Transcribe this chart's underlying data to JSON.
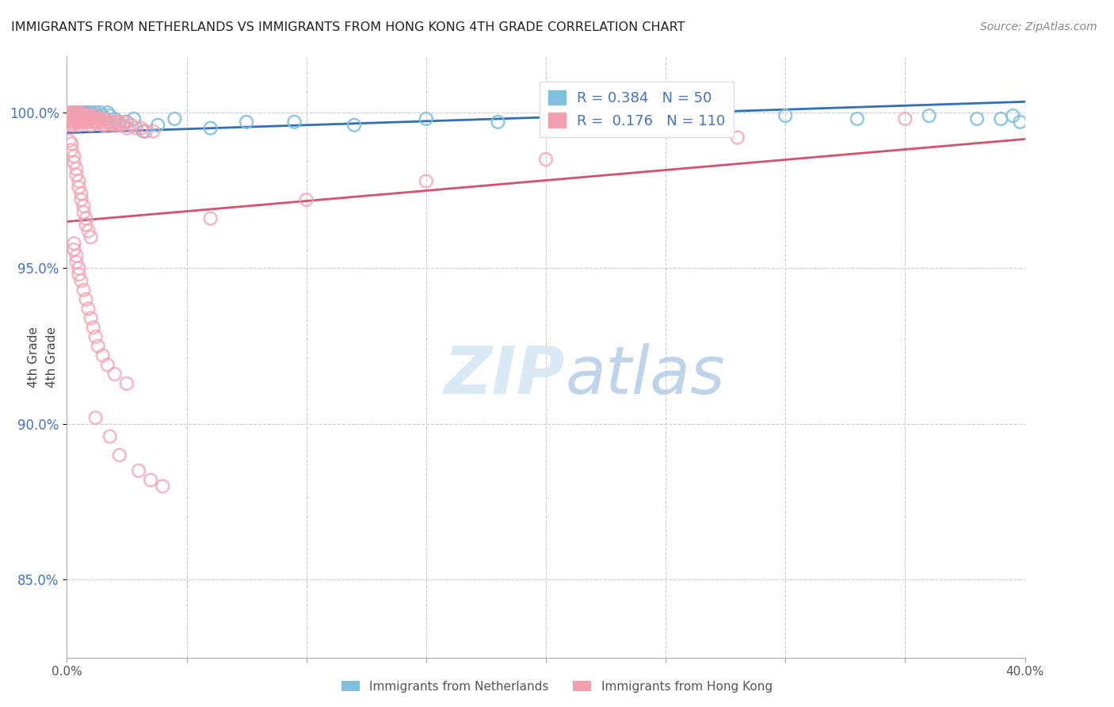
{
  "title": "IMMIGRANTS FROM NETHERLANDS VS IMMIGRANTS FROM HONG KONG 4TH GRADE CORRELATION CHART",
  "source": "Source: ZipAtlas.com",
  "ylabel": "4th Grade",
  "ytick_labels": [
    "100.0%",
    "95.0%",
    "90.0%",
    "85.0%"
  ],
  "ytick_values": [
    1.0,
    0.95,
    0.9,
    0.85
  ],
  "xlim": [
    0.0,
    0.4
  ],
  "ylim": [
    0.825,
    1.018
  ],
  "legend_blue_r": "R = 0.384",
  "legend_blue_n": "N = 50",
  "legend_pink_r": "R =  0.176",
  "legend_pink_n": "N = 110",
  "blue_color": "#7fbfdf",
  "pink_color": "#f4a0b0",
  "blue_line_color": "#3070b8",
  "pink_line_color": "#d85070",
  "blue_trend_x": [
    0.0,
    0.4
  ],
  "blue_trend_y": [
    0.9935,
    1.0035
  ],
  "pink_trend_x": [
    0.0,
    0.4
  ],
  "pink_trend_y": [
    0.965,
    0.9915
  ],
  "netherlands_x": [
    0.001,
    0.002,
    0.002,
    0.003,
    0.003,
    0.004,
    0.004,
    0.005,
    0.005,
    0.006,
    0.006,
    0.007,
    0.007,
    0.007,
    0.008,
    0.008,
    0.009,
    0.01,
    0.01,
    0.011,
    0.012,
    0.013,
    0.014,
    0.015,
    0.016,
    0.017,
    0.018,
    0.02,
    0.022,
    0.025,
    0.028,
    0.032,
    0.038,
    0.045,
    0.06,
    0.075,
    0.095,
    0.12,
    0.15,
    0.18,
    0.21,
    0.24,
    0.27,
    0.3,
    0.33,
    0.36,
    0.38,
    0.39,
    0.395,
    0.398
  ],
  "netherlands_y": [
    0.999,
    1.0,
    0.999,
    1.0,
    0.999,
    1.0,
    0.999,
    1.0,
    0.999,
    1.0,
    0.999,
    1.0,
    0.999,
    1.0,
    1.0,
    0.999,
    1.0,
    0.999,
    1.0,
    0.999,
    1.0,
    0.999,
    1.0,
    0.999,
    0.998,
    1.0,
    0.999,
    0.998,
    0.996,
    0.997,
    0.998,
    0.994,
    0.996,
    0.998,
    0.995,
    0.997,
    0.997,
    0.996,
    0.998,
    0.997,
    0.998,
    0.997,
    0.998,
    0.999,
    0.998,
    0.999,
    0.998,
    0.998,
    0.999,
    0.997
  ],
  "hongkong_x": [
    0.001,
    0.001,
    0.001,
    0.002,
    0.002,
    0.002,
    0.002,
    0.002,
    0.003,
    0.003,
    0.003,
    0.003,
    0.003,
    0.004,
    0.004,
    0.004,
    0.004,
    0.005,
    0.005,
    0.005,
    0.005,
    0.005,
    0.006,
    0.006,
    0.006,
    0.006,
    0.007,
    0.007,
    0.007,
    0.008,
    0.008,
    0.008,
    0.009,
    0.009,
    0.009,
    0.01,
    0.01,
    0.01,
    0.011,
    0.011,
    0.012,
    0.012,
    0.013,
    0.013,
    0.014,
    0.015,
    0.015,
    0.016,
    0.016,
    0.017,
    0.018,
    0.019,
    0.02,
    0.021,
    0.022,
    0.023,
    0.024,
    0.025,
    0.027,
    0.029,
    0.031,
    0.033,
    0.036,
    0.001,
    0.002,
    0.002,
    0.003,
    0.003,
    0.004,
    0.004,
    0.005,
    0.005,
    0.006,
    0.006,
    0.007,
    0.007,
    0.008,
    0.008,
    0.009,
    0.01,
    0.003,
    0.003,
    0.004,
    0.004,
    0.005,
    0.005,
    0.006,
    0.007,
    0.008,
    0.009,
    0.01,
    0.011,
    0.012,
    0.013,
    0.015,
    0.017,
    0.02,
    0.025,
    0.012,
    0.018,
    0.022,
    0.03,
    0.035,
    0.04,
    0.35,
    0.28,
    0.2,
    0.15,
    0.1,
    0.06
  ],
  "hongkong_y": [
    1.0,
    0.999,
    0.998,
    1.0,
    0.999,
    0.998,
    0.997,
    0.996,
    1.0,
    0.999,
    0.998,
    0.997,
    0.996,
    1.0,
    0.999,
    0.998,
    0.997,
    1.0,
    0.999,
    0.998,
    0.997,
    0.996,
    1.0,
    0.999,
    0.998,
    0.997,
    0.999,
    0.998,
    0.997,
    0.999,
    0.998,
    0.997,
    0.999,
    0.998,
    0.997,
    0.999,
    0.998,
    0.996,
    0.998,
    0.997,
    0.999,
    0.997,
    0.998,
    0.997,
    0.998,
    0.997,
    0.996,
    0.998,
    0.996,
    0.997,
    0.997,
    0.996,
    0.997,
    0.996,
    0.997,
    0.996,
    0.997,
    0.995,
    0.996,
    0.995,
    0.995,
    0.994,
    0.994,
    0.991,
    0.99,
    0.988,
    0.986,
    0.984,
    0.982,
    0.98,
    0.978,
    0.976,
    0.974,
    0.972,
    0.97,
    0.968,
    0.966,
    0.964,
    0.962,
    0.96,
    0.958,
    0.956,
    0.954,
    0.952,
    0.95,
    0.948,
    0.946,
    0.943,
    0.94,
    0.937,
    0.934,
    0.931,
    0.928,
    0.925,
    0.922,
    0.919,
    0.916,
    0.913,
    0.902,
    0.896,
    0.89,
    0.885,
    0.882,
    0.88,
    0.998,
    0.992,
    0.985,
    0.978,
    0.972,
    0.966
  ]
}
